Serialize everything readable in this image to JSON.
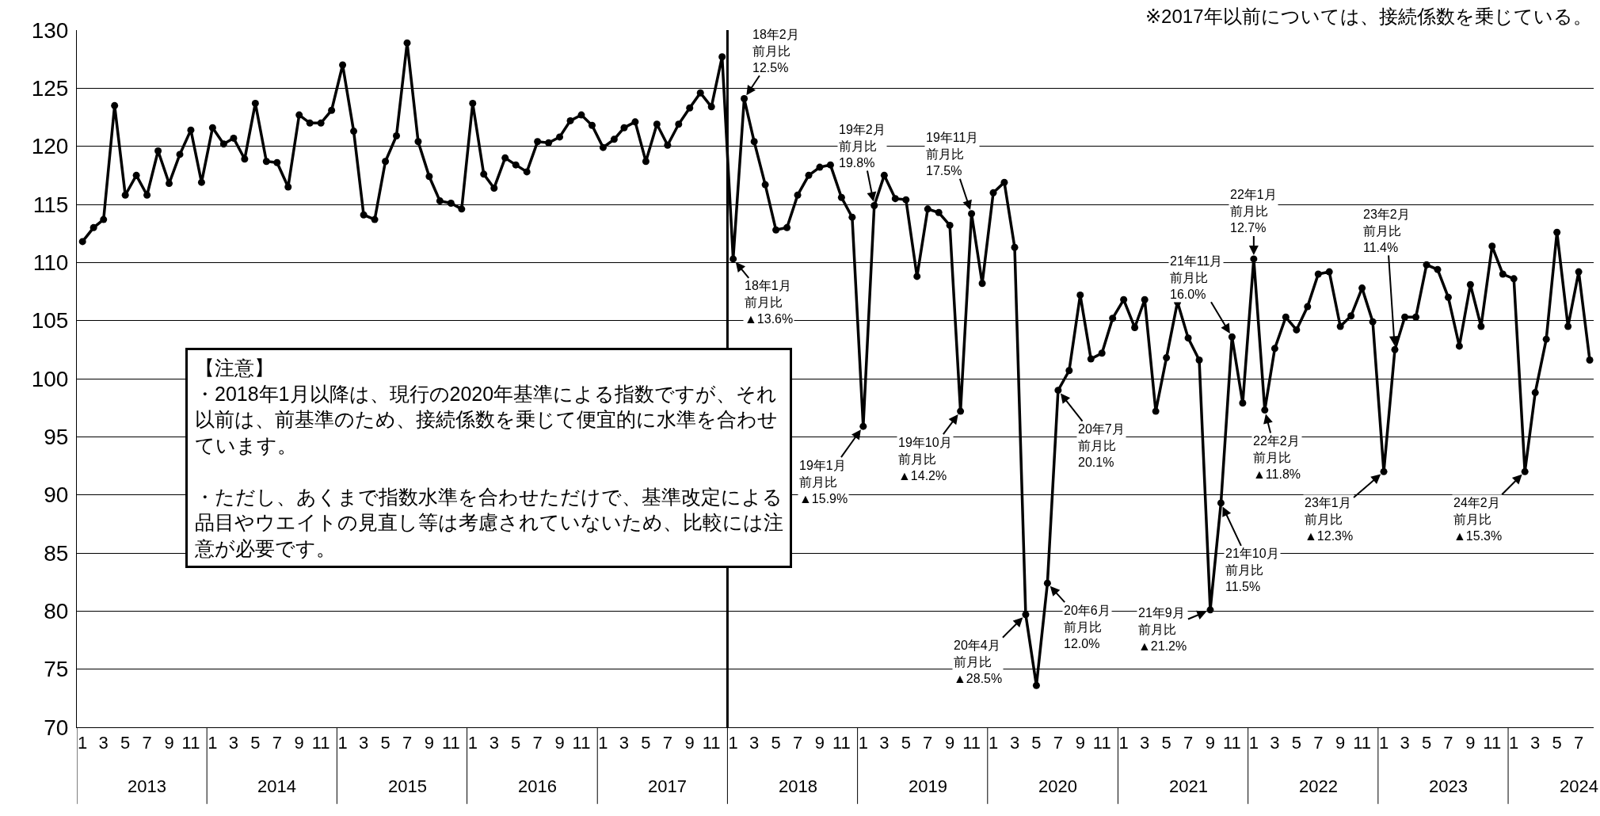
{
  "chart_data": {
    "type": "line",
    "marker": "circle",
    "line_style": "solid",
    "grid": "y",
    "x": [
      "2013-01",
      "2013-02",
      "2013-03",
      "2013-04",
      "2013-05",
      "2013-06",
      "2013-07",
      "2013-08",
      "2013-09",
      "2013-10",
      "2013-11",
      "2013-12",
      "2014-01",
      "2014-02",
      "2014-03",
      "2014-04",
      "2014-05",
      "2014-06",
      "2014-07",
      "2014-08",
      "2014-09",
      "2014-10",
      "2014-11",
      "2014-12",
      "2015-01",
      "2015-02",
      "2015-03",
      "2015-04",
      "2015-05",
      "2015-06",
      "2015-07",
      "2015-08",
      "2015-09",
      "2015-10",
      "2015-11",
      "2015-12",
      "2016-01",
      "2016-02",
      "2016-03",
      "2016-04",
      "2016-05",
      "2016-06",
      "2016-07",
      "2016-08",
      "2016-09",
      "2016-10",
      "2016-11",
      "2016-12",
      "2017-01",
      "2017-02",
      "2017-03",
      "2017-04",
      "2017-05",
      "2017-06",
      "2017-07",
      "2017-08",
      "2017-09",
      "2017-10",
      "2017-11",
      "2017-12",
      "2018-01",
      "2018-02",
      "2018-03",
      "2018-04",
      "2018-05",
      "2018-06",
      "2018-07",
      "2018-08",
      "2018-09",
      "2018-10",
      "2018-11",
      "2018-12",
      "2019-01",
      "2019-02",
      "2019-03",
      "2019-04",
      "2019-05",
      "2019-06",
      "2019-07",
      "2019-08",
      "2019-09",
      "2019-10",
      "2019-11",
      "2019-12",
      "2020-01",
      "2020-02",
      "2020-03",
      "2020-04",
      "2020-05",
      "2020-06",
      "2020-07",
      "2020-08",
      "2020-09",
      "2020-10",
      "2020-11",
      "2020-12",
      "2021-01",
      "2021-02",
      "2021-03",
      "2021-04",
      "2021-05",
      "2021-06",
      "2021-07",
      "2021-08",
      "2021-09",
      "2021-10",
      "2021-11",
      "2021-12",
      "2022-01",
      "2022-02",
      "2022-03",
      "2022-04",
      "2022-05",
      "2022-06",
      "2022-07",
      "2022-08",
      "2022-09",
      "2022-10",
      "2022-11",
      "2022-12",
      "2023-01",
      "2023-02",
      "2023-03",
      "2023-04",
      "2023-05",
      "2023-06",
      "2023-07",
      "2023-08",
      "2023-09",
      "2023-10",
      "2023-11",
      "2023-12",
      "2024-01",
      "2024-02",
      "2024-03",
      "2024-04",
      "2024-05",
      "2024-06",
      "2024-07",
      "2024-08"
    ],
    "series": [
      {
        "color": "#000000",
        "values": [
          111.8,
          113.0,
          113.7,
          123.5,
          115.8,
          117.5,
          115.8,
          119.6,
          116.8,
          119.3,
          121.4,
          116.9,
          121.6,
          120.2,
          120.7,
          118.9,
          123.7,
          118.7,
          118.6,
          116.5,
          122.7,
          122.0,
          122.0,
          123.1,
          127.0,
          121.3,
          114.1,
          113.7,
          118.7,
          120.9,
          128.9,
          120.4,
          117.4,
          115.3,
          115.1,
          114.6,
          123.7,
          117.6,
          116.4,
          119.0,
          118.4,
          117.8,
          120.4,
          120.3,
          120.8,
          122.2,
          122.7,
          121.8,
          119.9,
          120.6,
          121.6,
          122.1,
          118.7,
          121.9,
          120.1,
          121.9,
          123.3,
          124.6,
          123.4,
          127.7,
          110.3,
          124.1,
          120.4,
          116.7,
          112.8,
          113.0,
          115.8,
          117.5,
          118.2,
          118.4,
          115.6,
          113.9,
          95.9,
          114.9,
          117.5,
          115.5,
          115.4,
          108.8,
          114.6,
          114.3,
          113.2,
          97.2,
          114.2,
          108.2,
          116.0,
          116.9,
          111.3,
          79.7,
          73.6,
          82.4,
          99.0,
          100.7,
          107.2,
          101.7,
          102.2,
          105.2,
          106.8,
          104.4,
          106.8,
          97.2,
          101.8,
          106.6,
          103.5,
          101.6,
          80.1,
          89.3,
          103.6,
          97.9,
          110.3,
          97.3,
          102.6,
          105.3,
          104.2,
          106.2,
          109.0,
          109.2,
          104.5,
          105.4,
          107.8,
          104.9,
          92.0,
          102.5,
          105.3,
          105.3,
          109.8,
          109.4,
          107.0,
          102.8,
          108.1,
          104.5,
          111.4,
          109.0,
          108.6,
          92.0,
          98.8,
          103.4,
          112.6,
          104.5,
          109.2,
          101.6
        ]
      }
    ],
    "xlim": [
      "2012-12-16",
      "2024-08-12"
    ],
    "xticks": [
      {
        "value": "2013-01",
        "label": "1"
      },
      {
        "value": "2013-03",
        "label": "3"
      },
      {
        "value": "2013-05",
        "label": "5"
      },
      {
        "value": "2013-07",
        "label": "7"
      },
      {
        "value": "2013-09",
        "label": "9"
      },
      {
        "value": "2013-11",
        "label": "11"
      },
      {
        "value": "2014-01",
        "label": "1"
      },
      {
        "value": "2014-03",
        "label": "3"
      },
      {
        "value": "2014-05",
        "label": "5"
      },
      {
        "value": "2014-07",
        "label": "7"
      },
      {
        "value": "2014-09",
        "label": "9"
      },
      {
        "value": "2014-11",
        "label": "11"
      },
      {
        "value": "2015-01",
        "label": "1"
      },
      {
        "value": "2015-03",
        "label": "3"
      },
      {
        "value": "2015-05",
        "label": "5"
      },
      {
        "value": "2015-07",
        "label": "7"
      },
      {
        "value": "2015-09",
        "label": "9"
      },
      {
        "value": "2015-11",
        "label": "11"
      },
      {
        "value": "2016-01",
        "label": "1"
      },
      {
        "value": "2016-03",
        "label": "3"
      },
      {
        "value": "2016-05",
        "label": "5"
      },
      {
        "value": "2016-07",
        "label": "7"
      },
      {
        "value": "2016-09",
        "label": "9"
      },
      {
        "value": "2016-11",
        "label": "11"
      },
      {
        "value": "2017-01",
        "label": "1"
      },
      {
        "value": "2017-03",
        "label": "3"
      },
      {
        "value": "2017-05",
        "label": "5"
      },
      {
        "value": "2017-07",
        "label": "7"
      },
      {
        "value": "2017-09",
        "label": "9"
      },
      {
        "value": "2017-11",
        "label": "11"
      },
      {
        "value": "2018-01",
        "label": "1"
      },
      {
        "value": "2018-03",
        "label": "3"
      },
      {
        "value": "2018-05",
        "label": "5"
      },
      {
        "value": "2018-07",
        "label": "7"
      },
      {
        "value": "2018-09",
        "label": "9"
      },
      {
        "value": "2018-11",
        "label": "11"
      },
      {
        "value": "2019-01",
        "label": "1"
      },
      {
        "value": "2019-03",
        "label": "3"
      },
      {
        "value": "2019-05",
        "label": "5"
      },
      {
        "value": "2019-07",
        "label": "7"
      },
      {
        "value": "2019-09",
        "label": "9"
      },
      {
        "value": "2019-11",
        "label": "11"
      },
      {
        "value": "2020-01",
        "label": "1"
      },
      {
        "value": "2020-03",
        "label": "3"
      },
      {
        "value": "2020-05",
        "label": "5"
      },
      {
        "value": "2020-07",
        "label": "7"
      },
      {
        "value": "2020-09",
        "label": "9"
      },
      {
        "value": "2020-11",
        "label": "11"
      },
      {
        "value": "2021-01",
        "label": "1"
      },
      {
        "value": "2021-03",
        "label": "3"
      },
      {
        "value": "2021-05",
        "label": "5"
      },
      {
        "value": "2021-07",
        "label": "7"
      },
      {
        "value": "2021-09",
        "label": "9"
      },
      {
        "value": "2021-11",
        "label": "11"
      },
      {
        "value": "2022-01",
        "label": "1"
      },
      {
        "value": "2022-03",
        "label": "3"
      },
      {
        "value": "2022-05",
        "label": "5"
      },
      {
        "value": "2022-07",
        "label": "7"
      },
      {
        "value": "2022-09",
        "label": "9"
      },
      {
        "value": "2022-11",
        "label": "11"
      },
      {
        "value": "2023-01",
        "label": "1"
      },
      {
        "value": "2023-03",
        "label": "3"
      },
      {
        "value": "2023-05",
        "label": "5"
      },
      {
        "value": "2023-07",
        "label": "7"
      },
      {
        "value": "2023-09",
        "label": "9"
      },
      {
        "value": "2023-11",
        "label": "11"
      },
      {
        "value": "2024-01",
        "label": "1"
      },
      {
        "value": "2024-03",
        "label": "3"
      },
      {
        "value": "2024-05",
        "label": "5"
      },
      {
        "value": "2024-07",
        "label": "7"
      }
    ],
    "ylim": [
      70,
      130
    ],
    "yticks": [
      70,
      75,
      80,
      85,
      90,
      95,
      100,
      105,
      110,
      115,
      120,
      125,
      130
    ],
    "ref_lines": [
      {
        "axis": "x",
        "value": "2017-12-16",
        "color": "#000000"
      }
    ],
    "annotations": [
      "※2017年以前については、接続係数を乗じている。",
      "【注意】",
      "・2018年1月以降は、現行の2020年基準による指数ですが、それ以前は、前基準のため、接続係数を乗じて便宜的に水準を合わせています。",
      "・ただし、あくまで指数水準を合わせただけで、基準改定による品目やウエイトの見直し等は考慮されていないため、比較には注意が必要です。",
      "2013",
      "2014",
      "2015",
      "2016",
      "2017",
      "2018",
      "2019",
      "2020",
      "2021",
      "2022",
      "2023",
      "2024",
      {
        "text": "18年1月",
        "x": "2018-01",
        "y": 110.3
      },
      "前月比",
      "▲13.6%",
      "18年2月",
      "前月比",
      {
        "text": "12.5%",
        "x": "2018-02",
        "y": 124.1
      },
      {
        "text": "19年1月",
        "x": "2019-01",
        "y": 95.9
      },
      "前月比",
      "▲15.9%",
      "19年2月",
      "前月比",
      {
        "text": "19.8%",
        "x": "2019-02",
        "y": 114.9
      },
      {
        "text": "19年10月",
        "x": "2019-10",
        "y": 97.2
      },
      "前月比",
      "▲14.2%",
      "19年11月",
      "前月比",
      {
        "text": "17.5%",
        "x": "2019-11",
        "y": 114.2
      },
      {
        "text": "20年4月",
        "x": "2020-04",
        "y": 79.7
      },
      "前月比",
      "▲28.5%",
      {
        "text": "20年6月",
        "x": "2020-06",
        "y": 82.4
      },
      "前月比",
      "12.0%",
      {
        "text": "20年7月",
        "x": "2020-07",
        "y": 99.0
      },
      "前月比",
      "20.1%",
      {
        "text": "21年9月",
        "x": "2021-09",
        "y": 80.1
      },
      "前月比",
      "▲21.2%",
      {
        "text": "21年10月",
        "x": "2021-10",
        "y": 89.3
      },
      "前月比",
      "11.5%",
      "21年11月",
      "前月比",
      {
        "text": "16.0%",
        "x": "2021-11",
        "y": 103.6
      },
      "22年1月",
      "前月比",
      {
        "text": "12.7%",
        "x": "2022-01",
        "y": 110.3
      },
      {
        "text": "22年2月",
        "x": "2022-02",
        "y": 97.3
      },
      "前月比",
      "▲11.8%",
      {
        "text": "23年1月",
        "x": "2023-01",
        "y": 92.0
      },
      "前月比",
      "▲12.3%",
      "23年2月",
      "前月比",
      {
        "text": "11.4%",
        "x": "2023-02",
        "y": 102.5
      },
      {
        "text": "24年2月",
        "x": "2024-02",
        "y": 92.0
      },
      "前月比",
      "▲15.3%"
    ]
  }
}
